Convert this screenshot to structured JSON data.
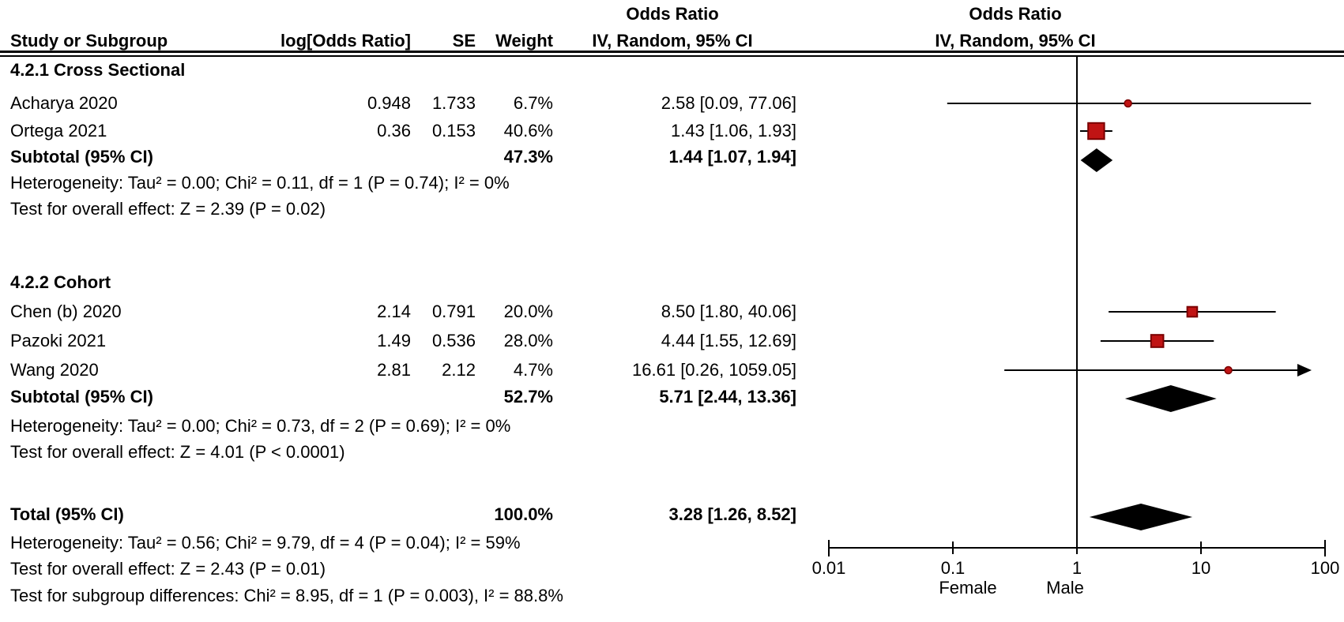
{
  "table": {
    "col_study": "Study or Subgroup",
    "col_log_or": "log[Odds Ratio]",
    "col_se": "SE",
    "col_weight": "Weight",
    "col_or_header": "Odds Ratio",
    "col_method_header": "IV, Random, 95% CI",
    "plot_or_header": "Odds Ratio",
    "plot_method_header": "IV, Random, 95% CI"
  },
  "groups": [
    {
      "title": "4.2.1 Cross Sectional",
      "studies": [
        {
          "name": "Acharya 2020",
          "log_or": "0.948",
          "se": "1.733",
          "weight": "6.7%",
          "ci": "2.58 [0.09, 77.06]"
        },
        {
          "name": "Ortega 2021",
          "log_or": "0.36",
          "se": "0.153",
          "weight": "40.6%",
          "ci": "1.43 [1.06, 1.93]"
        }
      ],
      "subtotal_label": "Subtotal (95% CI)",
      "subtotal_weight": "47.3%",
      "subtotal_ci": "1.44 [1.07, 1.94]",
      "heterogeneity": "Heterogeneity: Tau² = 0.00; Chi² = 0.11, df = 1 (P = 0.74); I² = 0%",
      "overall_effect": "Test for overall effect: Z = 2.39 (P = 0.02)"
    },
    {
      "title": "4.2.2 Cohort",
      "studies": [
        {
          "name": "Chen (b) 2020",
          "log_or": "2.14",
          "se": "0.791",
          "weight": "20.0%",
          "ci": "8.50 [1.80, 40.06]"
        },
        {
          "name": "Pazoki 2021",
          "log_or": "1.49",
          "se": "0.536",
          "weight": "28.0%",
          "ci": "4.44 [1.55, 12.69]"
        },
        {
          "name": "Wang 2020",
          "log_or": "2.81",
          "se": "2.12",
          "weight": "4.7%",
          "ci": "16.61 [0.26, 1059.05]"
        }
      ],
      "subtotal_label": "Subtotal (95% CI)",
      "subtotal_weight": "52.7%",
      "subtotal_ci": "5.71 [2.44, 13.36]",
      "heterogeneity": "Heterogeneity: Tau² = 0.00; Chi² = 0.73, df = 2 (P = 0.69); I² = 0%",
      "overall_effect": "Test for overall effect: Z = 4.01 (P < 0.0001)"
    }
  ],
  "total": {
    "label": "Total (95% CI)",
    "weight": "100.0%",
    "ci": "3.28 [1.26, 8.52]",
    "heterogeneity": "Heterogeneity: Tau² = 0.56; Chi² = 9.79, df = 4 (P = 0.04); I² = 59%",
    "overall_effect": "Test for overall effect: Z = 2.43 (P = 0.01)",
    "subgroup_diff": "Test for subgroup differences: Chi² = 8.95, df = 1 (P = 0.003), I² = 88.8%"
  },
  "axis": {
    "tick_labels": [
      "0.01",
      "0.1",
      "1",
      "10",
      "100"
    ],
    "left_label": "Female",
    "right_label": "Male"
  },
  "chart_data": {
    "type": "forest",
    "effect_measure": "Odds Ratio",
    "model": "IV, Random, 95% CI",
    "x_scale": "log10",
    "x_range": [
      0.01,
      100
    ],
    "x_ticks": [
      0.01,
      0.1,
      1,
      10,
      100
    ],
    "null_line": 1,
    "favours_left": "Female",
    "favours_right": "Male",
    "groups": [
      {
        "name": "4.2.1 Cross Sectional",
        "studies": [
          {
            "study": "Acharya 2020",
            "log_or": 0.948,
            "se": 1.733,
            "or": 2.58,
            "ci_low": 0.09,
            "ci_high": 77.06,
            "weight_pct": 6.7
          },
          {
            "study": "Ortega 2021",
            "log_or": 0.36,
            "se": 0.153,
            "or": 1.43,
            "ci_low": 1.06,
            "ci_high": 1.93,
            "weight_pct": 40.6
          }
        ],
        "subtotal": {
          "or": 1.44,
          "ci_low": 1.07,
          "ci_high": 1.94,
          "weight_pct": 47.3
        },
        "heterogeneity": {
          "tau2": 0.0,
          "chi2": 0.11,
          "df": 1,
          "p": 0.74,
          "i2_pct": 0
        },
        "overall_effect": {
          "z": 2.39,
          "p": 0.02
        }
      },
      {
        "name": "4.2.2 Cohort",
        "studies": [
          {
            "study": "Chen (b) 2020",
            "log_or": 2.14,
            "se": 0.791,
            "or": 8.5,
            "ci_low": 1.8,
            "ci_high": 40.06,
            "weight_pct": 20.0
          },
          {
            "study": "Pazoki 2021",
            "log_or": 1.49,
            "se": 0.536,
            "or": 4.44,
            "ci_low": 1.55,
            "ci_high": 12.69,
            "weight_pct": 28.0
          },
          {
            "study": "Wang 2020",
            "log_or": 2.81,
            "se": 2.12,
            "or": 16.61,
            "ci_low": 0.26,
            "ci_high": 1059.05,
            "weight_pct": 4.7
          }
        ],
        "subtotal": {
          "or": 5.71,
          "ci_low": 2.44,
          "ci_high": 13.36,
          "weight_pct": 52.7
        },
        "heterogeneity": {
          "tau2": 0.0,
          "chi2": 0.73,
          "df": 2,
          "p": 0.69,
          "i2_pct": 0
        },
        "overall_effect": {
          "z": 4.01,
          "p_text": "< 0.0001"
        }
      }
    ],
    "total": {
      "or": 3.28,
      "ci_low": 1.26,
      "ci_high": 8.52,
      "weight_pct": 100.0
    },
    "total_heterogeneity": {
      "tau2": 0.56,
      "chi2": 9.79,
      "df": 4,
      "p": 0.04,
      "i2_pct": 59
    },
    "total_overall_effect": {
      "z": 2.43,
      "p": 0.01
    },
    "subgroup_differences": {
      "chi2": 8.95,
      "df": 1,
      "p": 0.003,
      "i2_pct": 88.8
    },
    "colors": {
      "marker_fill": "#c01414",
      "marker_stroke": "#7a0000",
      "diamond": "#000000",
      "line": "#000000"
    }
  }
}
